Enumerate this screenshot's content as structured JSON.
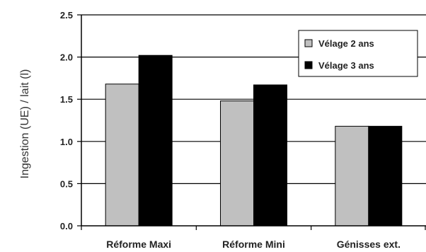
{
  "chart_data": {
    "type": "bar",
    "title": "",
    "xlabel": "",
    "ylabel": "Ingestion (UE) / lait (l)",
    "ylim": [
      0,
      2.5
    ],
    "yticks": [
      "0.0",
      "0.5",
      "1.0",
      "1.5",
      "2.0",
      "2.5"
    ],
    "categories": [
      "Réforme Maxi",
      "Réforme Mini",
      "Génisses ext."
    ],
    "series": [
      {
        "name": "Vélage 2 ans",
        "values": [
          1.68,
          1.48,
          1.18
        ],
        "color": "#c0c0c0"
      },
      {
        "name": "Vélage 3 ans",
        "values": [
          2.02,
          1.67,
          1.18
        ],
        "color": "#000000"
      }
    ],
    "grid": true,
    "legend_position": "top-right"
  }
}
